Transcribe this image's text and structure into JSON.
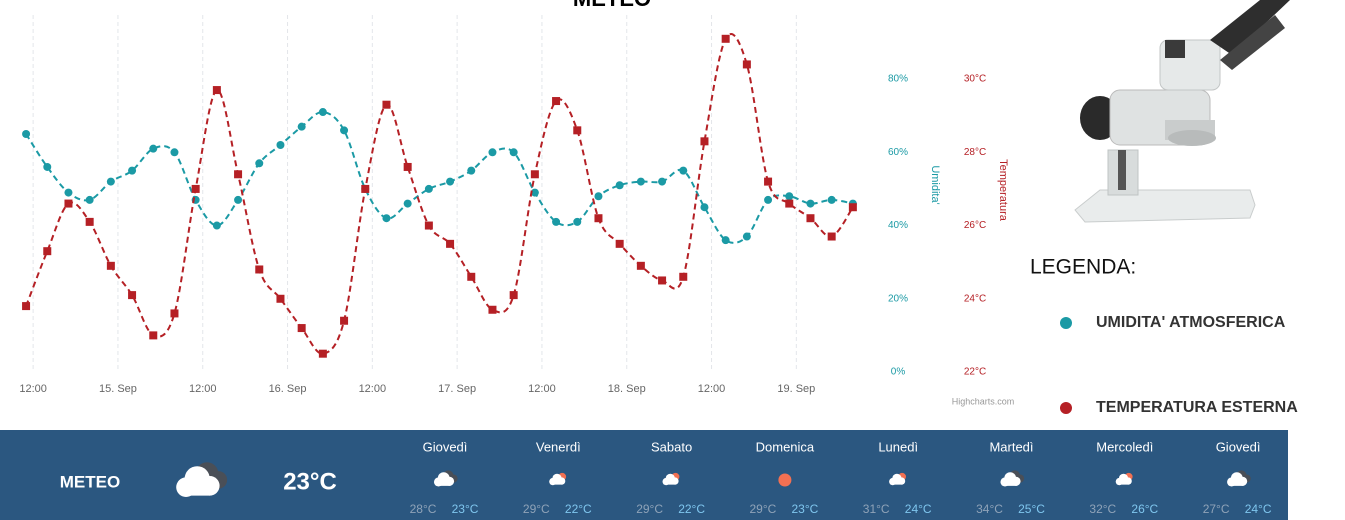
{
  "chart_data": {
    "type": "line",
    "title": "METEO",
    "x": [
      11,
      14,
      17,
      20,
      23,
      26,
      29,
      32,
      35,
      38,
      41,
      44,
      47,
      50,
      53,
      56,
      59,
      62,
      65,
      68,
      71,
      74,
      77,
      80,
      83,
      86,
      89,
      92,
      95,
      98,
      101,
      104,
      107,
      110,
      113,
      116,
      119,
      122,
      125,
      128
    ],
    "xlim": [
      10,
      130
    ],
    "xticks": [
      {
        "value": 12,
        "label": "12:00"
      },
      {
        "value": 24,
        "label": "15. Sep"
      },
      {
        "value": 36,
        "label": "12:00"
      },
      {
        "value": 48,
        "label": "16. Sep"
      },
      {
        "value": 60,
        "label": "12:00"
      },
      {
        "value": 72,
        "label": "17. Sep"
      },
      {
        "value": 84,
        "label": "12:00"
      },
      {
        "value": 96,
        "label": "18. Sep"
      },
      {
        "value": 108,
        "label": "12:00"
      },
      {
        "value": 120,
        "label": "19. Sep"
      }
    ],
    "ylim": [
      0,
      97.5
    ],
    "yticks": [
      {
        "value": 0,
        "label": "0%"
      },
      {
        "value": 20,
        "label": "20%"
      },
      {
        "value": 40,
        "label": "40%"
      },
      {
        "value": 60,
        "label": "60%"
      },
      {
        "value": 80,
        "label": "80%"
      }
    ],
    "ylabel": "Umidita'",
    "y2lim": [
      22,
      31.75
    ],
    "y2ticks": [
      {
        "value": 22,
        "label": "22°C"
      },
      {
        "value": 24,
        "label": "24°C"
      },
      {
        "value": 26,
        "label": "26°C"
      },
      {
        "value": 28,
        "label": "28°C"
      },
      {
        "value": 30,
        "label": "30°C"
      }
    ],
    "y2label": "Temperatura",
    "grid": true,
    "credits": "Highcharts.com",
    "legend_title": "LEGENDA:",
    "legend": "right",
    "series": [
      {
        "name": "UMIDITA' ATMOSFERICA",
        "color": "#1b9aa5",
        "axis": "y",
        "values": [
          65,
          56,
          49,
          47,
          52,
          55,
          61,
          60,
          47,
          40,
          47,
          57,
          62,
          67,
          71,
          66,
          50,
          42,
          46,
          50,
          52,
          55,
          60,
          60,
          49,
          41,
          41,
          48,
          51,
          52,
          52,
          55,
          45,
          36,
          37,
          47,
          48,
          46,
          47,
          46
        ]
      },
      {
        "name": "TEMPERATURA ESTERNA",
        "color": "#b52025",
        "axis": "y2",
        "values": [
          23.8,
          25.3,
          26.6,
          26.1,
          24.9,
          24.1,
          23.0,
          23.6,
          27.0,
          29.7,
          27.4,
          24.8,
          24.0,
          23.2,
          22.5,
          23.4,
          27.0,
          29.3,
          27.6,
          26.0,
          25.5,
          24.6,
          23.7,
          24.1,
          27.4,
          29.4,
          28.6,
          26.2,
          25.5,
          24.9,
          24.5,
          24.6,
          28.3,
          31.1,
          30.4,
          27.2,
          26.6,
          26.2,
          25.7,
          26.5
        ]
      }
    ]
  },
  "weather_bar": {
    "title": "METEO",
    "current_icon": "cloud-dark",
    "current_temp": "23°C",
    "days": [
      {
        "name": "Giovedì",
        "icon": "cloud-dark",
        "max": "28°C",
        "min": "23°C"
      },
      {
        "name": "Venerdì",
        "icon": "sun-cloud",
        "max": "29°C",
        "min": "22°C"
      },
      {
        "name": "Sabato",
        "icon": "sun-cloud",
        "max": "29°C",
        "min": "22°C"
      },
      {
        "name": "Domenica",
        "icon": "sun",
        "max": "29°C",
        "min": "23°C"
      },
      {
        "name": "Lunedì",
        "icon": "sun-cloud",
        "max": "31°C",
        "min": "24°C"
      },
      {
        "name": "Martedì",
        "icon": "cloud-dark",
        "max": "34°C",
        "min": "25°C"
      },
      {
        "name": "Mercoledì",
        "icon": "sun-cloud",
        "max": "32°C",
        "min": "26°C"
      },
      {
        "name": "Giovedì",
        "icon": "cloud-dark",
        "max": "27°C",
        "min": "24°C"
      }
    ]
  }
}
